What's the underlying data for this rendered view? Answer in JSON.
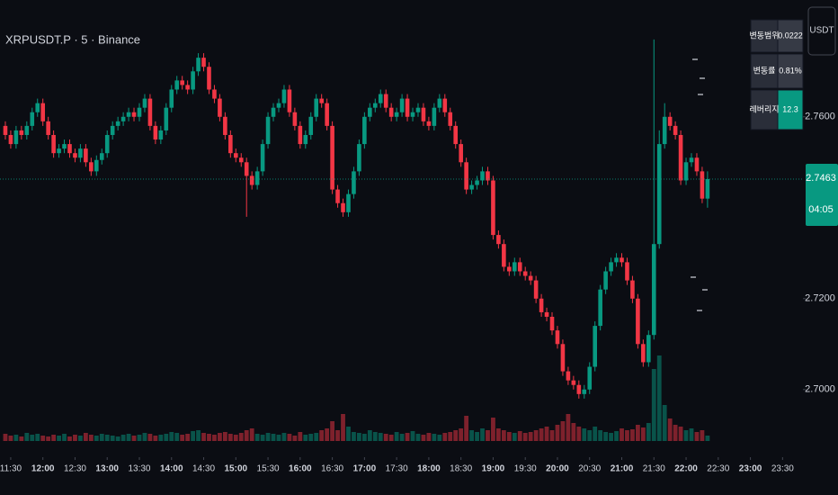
{
  "chart_data": {
    "type": "candlestick",
    "title": "XRPUSDT.P · 5 · Binance",
    "up_color": "#089981",
    "down_color": "#f23645",
    "open": [
      2.758,
      2.756,
      2.754,
      2.757,
      2.756,
      2.758,
      2.761,
      2.763,
      2.759,
      2.756,
      2.752,
      2.753,
      2.754,
      2.752,
      2.751,
      2.753,
      2.75,
      2.748,
      2.7505,
      2.752,
      2.756,
      2.758,
      2.759,
      2.76,
      2.761,
      2.76,
      2.762,
      2.764,
      2.758,
      2.755,
      2.757,
      2.762,
      2.766,
      2.768,
      2.767,
      2.766,
      2.77,
      2.773,
      2.771,
      2.766,
      2.764,
      2.76,
      2.756,
      2.752,
      2.751,
      2.75,
      2.747,
      2.745,
      2.748,
      2.754,
      2.76,
      2.762,
      2.763,
      2.766,
      2.761,
      2.758,
      2.754,
      2.756,
      2.76,
      2.764,
      2.763,
      2.758,
      2.744,
      2.741,
      2.739,
      2.743,
      2.748,
      2.754,
      2.76,
      2.762,
      2.763,
      2.765,
      2.762,
      2.76,
      2.761,
      2.764,
      2.76,
      2.761,
      2.762,
      2.759,
      2.758,
      2.762,
      2.764,
      2.761,
      2.758,
      2.754,
      2.75,
      2.744,
      2.745,
      2.746,
      2.748,
      2.746,
      2.734,
      2.732,
      2.727,
      2.726,
      2.728,
      2.726,
      2.725,
      2.724,
      2.72,
      2.717,
      2.716,
      2.713,
      2.71,
      2.704,
      2.702,
      2.701,
      2.699,
      2.7,
      2.705,
      2.714,
      2.722,
      2.726,
      2.728,
      2.729,
      2.728,
      2.724,
      2.72,
      2.71,
      2.706,
      2.712,
      2.732,
      2.754,
      2.76,
      2.758,
      2.756,
      2.746,
      2.75,
      2.751,
      2.748,
      2.742
    ],
    "high": [
      2.759,
      2.757,
      2.758,
      2.758,
      2.759,
      2.762,
      2.764,
      2.764,
      2.76,
      2.757,
      2.754,
      2.755,
      2.755,
      2.753,
      2.754,
      2.754,
      2.751,
      2.7515,
      2.753,
      2.757,
      2.759,
      2.76,
      2.761,
      2.762,
      2.762,
      2.763,
      2.765,
      2.765,
      2.759,
      2.758,
      2.763,
      2.767,
      2.769,
      2.769,
      2.768,
      2.771,
      2.774,
      2.774,
      2.772,
      2.767,
      2.765,
      2.761,
      2.757,
      2.753,
      2.752,
      2.751,
      2.748,
      2.749,
      2.755,
      2.761,
      2.763,
      2.764,
      2.767,
      2.767,
      2.762,
      2.759,
      2.757,
      2.761,
      2.765,
      2.765,
      2.764,
      2.759,
      2.745,
      2.742,
      2.744,
      2.749,
      2.755,
      2.761,
      2.763,
      2.764,
      2.766,
      2.766,
      2.763,
      2.762,
      2.765,
      2.765,
      2.762,
      2.763,
      2.763,
      2.76,
      2.763,
      2.765,
      2.765,
      2.762,
      2.759,
      2.755,
      2.751,
      2.746,
      2.747,
      2.749,
      2.749,
      2.747,
      2.735,
      2.733,
      2.728,
      2.729,
      2.729,
      2.727,
      2.726,
      2.725,
      2.721,
      2.718,
      2.717,
      2.714,
      2.711,
      2.705,
      2.703,
      2.702,
      2.701,
      2.706,
      2.715,
      2.723,
      2.727,
      2.729,
      2.73,
      2.73,
      2.729,
      2.725,
      2.721,
      2.711,
      2.713,
      2.777,
      2.757,
      2.763,
      2.761,
      2.759,
      2.757,
      2.751,
      2.752,
      2.752,
      2.749,
      2.748
    ],
    "low": [
      2.755,
      2.753,
      2.753,
      2.755,
      2.755,
      2.757,
      2.76,
      2.758,
      2.755,
      2.751,
      2.751,
      2.752,
      2.751,
      2.75,
      2.75,
      2.749,
      2.747,
      2.747,
      2.7495,
      2.751,
      2.755,
      2.757,
      2.758,
      2.759,
      2.759,
      2.759,
      2.761,
      2.757,
      2.754,
      2.754,
      2.756,
      2.761,
      2.765,
      2.766,
      2.765,
      2.765,
      2.769,
      2.77,
      2.765,
      2.763,
      2.759,
      2.755,
      2.751,
      2.75,
      2.749,
      2.738,
      2.744,
      2.744,
      2.747,
      2.753,
      2.759,
      2.761,
      2.762,
      2.76,
      2.757,
      2.753,
      2.753,
      2.755,
      2.759,
      2.762,
      2.757,
      2.743,
      2.74,
      2.738,
      2.738,
      2.742,
      2.747,
      2.753,
      2.759,
      2.761,
      2.762,
      2.761,
      2.759,
      2.759,
      2.76,
      2.759,
      2.759,
      2.76,
      2.758,
      2.757,
      2.757,
      2.761,
      2.76,
      2.757,
      2.753,
      2.749,
      2.743,
      2.743,
      2.744,
      2.745,
      2.745,
      2.733,
      2.731,
      2.726,
      2.725,
      2.725,
      2.725,
      2.724,
      2.723,
      2.719,
      2.716,
      2.715,
      2.712,
      2.709,
      2.703,
      2.701,
      2.7,
      2.698,
      2.698,
      2.699,
      2.704,
      2.713,
      2.721,
      2.725,
      2.727,
      2.727,
      2.723,
      2.719,
      2.709,
      2.705,
      2.705,
      2.711,
      2.731,
      2.753,
      2.757,
      2.755,
      2.745,
      2.745,
      2.749,
      2.747,
      2.741,
      2.74
    ],
    "close": [
      2.756,
      2.754,
      2.757,
      2.756,
      2.758,
      2.761,
      2.763,
      2.759,
      2.756,
      2.752,
      2.753,
      2.754,
      2.752,
      2.751,
      2.753,
      2.75,
      2.748,
      2.7505,
      2.752,
      2.756,
      2.758,
      2.759,
      2.76,
      2.761,
      2.76,
      2.762,
      2.764,
      2.758,
      2.755,
      2.757,
      2.762,
      2.766,
      2.768,
      2.767,
      2.766,
      2.77,
      2.773,
      2.771,
      2.766,
      2.764,
      2.76,
      2.756,
      2.752,
      2.751,
      2.75,
      2.747,
      2.745,
      2.748,
      2.754,
      2.76,
      2.762,
      2.763,
      2.766,
      2.761,
      2.758,
      2.754,
      2.756,
      2.76,
      2.764,
      2.763,
      2.758,
      2.744,
      2.741,
      2.739,
      2.743,
      2.748,
      2.754,
      2.76,
      2.762,
      2.763,
      2.765,
      2.762,
      2.76,
      2.761,
      2.764,
      2.76,
      2.761,
      2.762,
      2.759,
      2.758,
      2.762,
      2.764,
      2.761,
      2.758,
      2.754,
      2.75,
      2.744,
      2.745,
      2.746,
      2.748,
      2.746,
      2.734,
      2.732,
      2.727,
      2.726,
      2.728,
      2.726,
      2.725,
      2.724,
      2.72,
      2.717,
      2.716,
      2.713,
      2.71,
      2.704,
      2.702,
      2.701,
      2.699,
      2.7,
      2.705,
      2.714,
      2.722,
      2.726,
      2.728,
      2.729,
      2.728,
      2.724,
      2.72,
      2.71,
      2.706,
      2.712,
      2.732,
      2.754,
      2.76,
      2.758,
      2.756,
      2.746,
      2.75,
      2.751,
      2.748,
      2.742,
      2.7463
    ],
    "volume": [
      8,
      6,
      7,
      5,
      9,
      7,
      8,
      6,
      5,
      7,
      6,
      8,
      5,
      7,
      6,
      9,
      7,
      6,
      8,
      7,
      6,
      5,
      7,
      8,
      6,
      7,
      9,
      8,
      6,
      7,
      8,
      10,
      9,
      7,
      8,
      11,
      12,
      9,
      8,
      7,
      9,
      10,
      8,
      7,
      9,
      12,
      14,
      8,
      7,
      9,
      8,
      7,
      9,
      8,
      6,
      10,
      7,
      8,
      9,
      12,
      14,
      22,
      12,
      30,
      16,
      10,
      9,
      8,
      12,
      10,
      9,
      8,
      7,
      10,
      8,
      9,
      11,
      8,
      7,
      9,
      8,
      7,
      9,
      10,
      12,
      14,
      28,
      12,
      10,
      14,
      12,
      26,
      14,
      12,
      10,
      9,
      11,
      9,
      10,
      12,
      14,
      16,
      12,
      18,
      22,
      30,
      20,
      16,
      14,
      12,
      16,
      12,
      10,
      9,
      11,
      14,
      12,
      13,
      18,
      15,
      20,
      80,
      95,
      40,
      25,
      18,
      16,
      12,
      14,
      10,
      12,
      6
    ],
    "ylim": [
      2.6857,
      2.7857
    ],
    "yticks": [
      {
        "value": 2.7,
        "label": "2.7000"
      },
      {
        "value": 2.72,
        "label": "2.7200"
      },
      {
        "value": 2.76,
        "label": "2.7600"
      }
    ],
    "xlim": [
      -1,
      148.8
    ],
    "xticks": [
      {
        "value": 1,
        "label": "11:30"
      },
      {
        "value": 7,
        "label": "12:00"
      },
      {
        "value": 13,
        "label": "12:30"
      },
      {
        "value": 19,
        "label": "13:00"
      },
      {
        "value": 25,
        "label": "13:30"
      },
      {
        "value": 31,
        "label": "14:00"
      },
      {
        "value": 37,
        "label": "14:30"
      },
      {
        "value": 43,
        "label": "15:00"
      },
      {
        "value": 49,
        "label": "15:30"
      },
      {
        "value": 55,
        "label": "16:00"
      },
      {
        "value": 61,
        "label": "16:30"
      },
      {
        "value": 67,
        "label": "17:00"
      },
      {
        "value": 73,
        "label": "17:30"
      },
      {
        "value": 79,
        "label": "18:00"
      },
      {
        "value": 85,
        "label": "18:30"
      },
      {
        "value": 91,
        "label": "19:00"
      },
      {
        "value": 97,
        "label": "19:30"
      },
      {
        "value": 103,
        "label": "20:00"
      },
      {
        "value": 109,
        "label": "20:30"
      },
      {
        "value": 115,
        "label": "21:00"
      },
      {
        "value": 121,
        "label": "21:30"
      },
      {
        "value": 127,
        "label": "22:00"
      },
      {
        "value": 133,
        "label": "22:30"
      },
      {
        "value": 139,
        "label": "23:00"
      },
      {
        "value": 145,
        "label": "23:30"
      }
    ],
    "grid": false,
    "countdown": "04:05"
  },
  "currency_button": "USDT",
  "stats_table": {
    "rows": [
      [
        "변동범위",
        "0.0222"
      ],
      [
        "변동률",
        "0.81%"
      ],
      [
        "레버리지",
        "12.3"
      ]
    ]
  }
}
